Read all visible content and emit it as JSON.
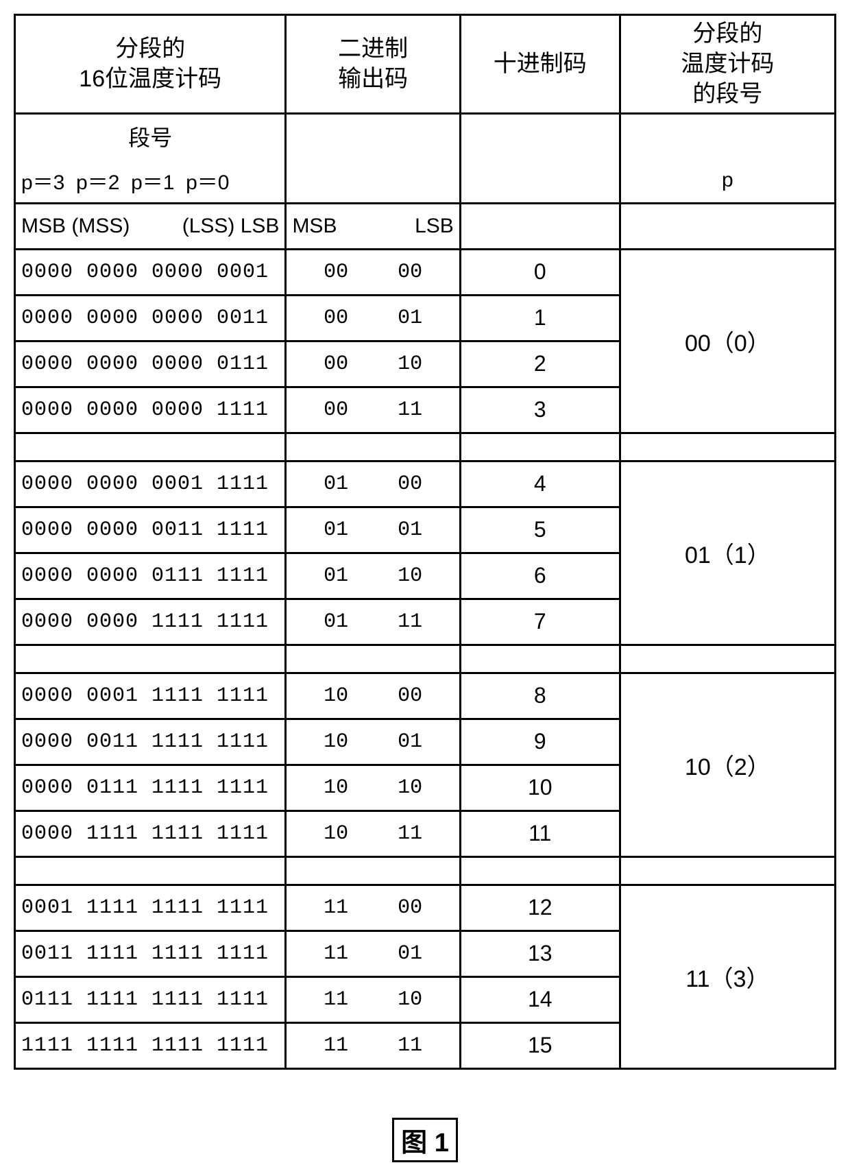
{
  "headers": {
    "col1": "分段的<br>16位温度计码",
    "col2": "二进制<br>输出码",
    "col3": "十进制码",
    "col4": "分段的<br>温度计码<br>的段号"
  },
  "subheader": {
    "segno_label": "段号",
    "p_labels": "p＝3&nbsp;&nbsp;p＝2&nbsp;&nbsp;p＝1&nbsp;&nbsp;p＝0",
    "p_single": "p",
    "msb_mss": "MSB&nbsp;(MSS)",
    "lss_lsb": "(LSS)&nbsp;LSB",
    "msb": "MSB",
    "lsb": "LSB"
  },
  "groups": [
    {
      "seg": "00（0）",
      "rows": [
        {
          "thermo": "0000 0000 0000 0001",
          "bin": "00    00",
          "dec": "0"
        },
        {
          "thermo": "0000 0000 0000 0011",
          "bin": "00    01",
          "dec": "1"
        },
        {
          "thermo": "0000 0000 0000 0111",
          "bin": "00    10",
          "dec": "2"
        },
        {
          "thermo": "0000 0000 0000 1111",
          "bin": "00    11",
          "dec": "3"
        }
      ]
    },
    {
      "seg": "01（1）",
      "rows": [
        {
          "thermo": "0000 0000 0001 1111",
          "bin": "01    00",
          "dec": "4"
        },
        {
          "thermo": "0000 0000 0011 1111",
          "bin": "01    01",
          "dec": "5"
        },
        {
          "thermo": "0000 0000 0111 1111",
          "bin": "01    10",
          "dec": "6"
        },
        {
          "thermo": "0000 0000 1111 1111",
          "bin": "01    11",
          "dec": "7"
        }
      ]
    },
    {
      "seg": "10（2）",
      "rows": [
        {
          "thermo": "0000 0001 1111 1111",
          "bin": "10    00",
          "dec": "8"
        },
        {
          "thermo": "0000 0011 1111 1111",
          "bin": "10    01",
          "dec": "9"
        },
        {
          "thermo": "0000 0111 1111 1111",
          "bin": "10    10",
          "dec": "10"
        },
        {
          "thermo": "0000 1111 1111 1111",
          "bin": "10    11",
          "dec": "11"
        }
      ]
    },
    {
      "seg": "11（3）",
      "rows": [
        {
          "thermo": "0001 1111 1111 1111",
          "bin": "11    00",
          "dec": "12"
        },
        {
          "thermo": "0011 1111 1111 1111",
          "bin": "11    01",
          "dec": "13"
        },
        {
          "thermo": "0111 1111 1111 1111",
          "bin": "11    10",
          "dec": "14"
        },
        {
          "thermo": "1111 1111 1111 1111",
          "bin": "11    11",
          "dec": "15"
        }
      ]
    }
  ],
  "caption": "图 1"
}
